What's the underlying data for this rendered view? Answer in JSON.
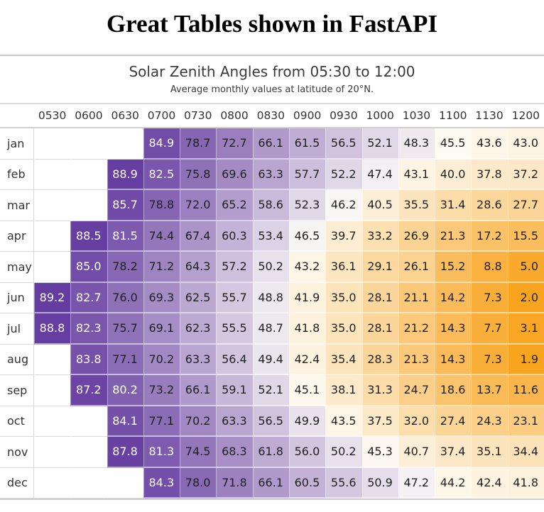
{
  "page_title": "Great Tables shown in FastAPI",
  "table_header": {
    "title": "Solar Zenith Angles from 05:30 to 12:00",
    "subtitle": "Average monthly values at latitude of 20°N."
  },
  "colors": {
    "purple_max": "#653CA0",
    "white_mid_purple_side": "#FCFAF7",
    "white_mid_orange_side": "#FDFAF2",
    "orange_min": "#F9A41F",
    "dark_cell_text": "#FFFFFF",
    "light_cell_text": "#1F1F1F",
    "header_text": "#333333",
    "title_text": "#3A3A3A"
  },
  "color_scale": {
    "value_min": 1.9,
    "value_mid": 45.6,
    "value_max": 89.2,
    "purple_exponent": 0.9,
    "orange_exponent": 0.95,
    "white_text_threshold": 80
  },
  "chart_data": {
    "type": "heatmap",
    "title": "Solar Zenith Angles from 05:30 to 12:00",
    "subtitle": "Average monthly values at latitude of 20°N.",
    "x_categories": [
      "0530",
      "0600",
      "0630",
      "0700",
      "0730",
      "0800",
      "0830",
      "0900",
      "0930",
      "1000",
      "1030",
      "1100",
      "1130",
      "1200"
    ],
    "y_categories": [
      "jan",
      "feb",
      "mar",
      "apr",
      "may",
      "jun",
      "jul",
      "aug",
      "sep",
      "oct",
      "nov",
      "dec"
    ],
    "value_format": "1 decimal place, blank where sun below horizon",
    "legend_position": "none",
    "matrix": [
      [
        null,
        null,
        null,
        84.9,
        78.7,
        72.7,
        66.1,
        61.5,
        56.5,
        52.1,
        48.3,
        45.5,
        43.6,
        43.0
      ],
      [
        null,
        null,
        88.9,
        82.5,
        75.8,
        69.6,
        63.3,
        57.7,
        52.2,
        47.4,
        43.1,
        40.0,
        37.8,
        37.2
      ],
      [
        null,
        null,
        85.7,
        78.8,
        72.0,
        65.2,
        58.6,
        52.3,
        46.2,
        40.5,
        35.5,
        31.4,
        28.6,
        27.7
      ],
      [
        null,
        88.5,
        81.5,
        74.4,
        67.4,
        60.3,
        53.4,
        46.5,
        39.7,
        33.2,
        26.9,
        21.3,
        17.2,
        15.5
      ],
      [
        null,
        85.0,
        78.2,
        71.2,
        64.3,
        57.2,
        50.2,
        43.2,
        36.1,
        29.1,
        26.1,
        15.2,
        8.8,
        5.0
      ],
      [
        89.2,
        82.7,
        76.0,
        69.3,
        62.5,
        55.7,
        48.8,
        41.9,
        35.0,
        28.1,
        21.1,
        14.2,
        7.3,
        2.0
      ],
      [
        88.8,
        82.3,
        75.7,
        69.1,
        62.3,
        55.5,
        48.7,
        41.8,
        35.0,
        28.1,
        21.2,
        14.3,
        7.7,
        3.1
      ],
      [
        null,
        83.8,
        77.1,
        70.2,
        63.3,
        56.4,
        49.4,
        42.4,
        35.4,
        28.3,
        21.3,
        14.3,
        7.3,
        1.9
      ],
      [
        null,
        87.2,
        80.2,
        73.2,
        66.1,
        59.1,
        52.1,
        45.1,
        38.1,
        31.3,
        24.7,
        18.6,
        13.7,
        11.6
      ],
      [
        null,
        null,
        84.1,
        77.1,
        70.2,
        63.3,
        56.5,
        49.9,
        43.5,
        37.5,
        32.0,
        27.4,
        24.3,
        23.1
      ],
      [
        null,
        null,
        87.8,
        81.3,
        74.5,
        68.3,
        61.8,
        56.0,
        50.2,
        45.3,
        40.7,
        37.4,
        35.1,
        34.4
      ],
      [
        null,
        null,
        null,
        84.3,
        78.0,
        71.8,
        66.1,
        60.5,
        55.6,
        50.9,
        47.2,
        44.2,
        42.4,
        41.8
      ]
    ]
  }
}
